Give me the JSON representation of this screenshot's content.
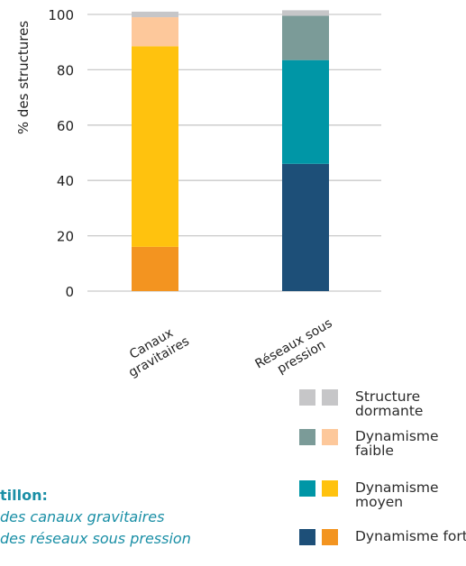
{
  "chart_data": {
    "type": "bar",
    "stacked": true,
    "ylabel": "% des structures",
    "ylim": [
      0,
      100
    ],
    "yticks": [
      0,
      20,
      40,
      60,
      80,
      100
    ],
    "categories": [
      "Canaux gravitaires",
      "Réseaux sous pression"
    ],
    "category_lines": [
      [
        "Canaux",
        "gravitaires"
      ],
      [
        "Réseaux sous",
        "pression"
      ]
    ],
    "grid": true,
    "series": [
      {
        "name": "Dynamisme fort",
        "values": [
          16,
          46
        ],
        "colors": [
          "#f39420",
          "#1d4f78"
        ]
      },
      {
        "name": "Dynamisme moyen",
        "values": [
          72.5,
          37.5
        ],
        "colors": [
          "#ffc20e",
          "#0096a6"
        ]
      },
      {
        "name": "Dynamisme faible",
        "values": [
          10.5,
          16
        ],
        "colors": [
          "#fdc89b",
          "#7b9b98"
        ]
      },
      {
        "name": "Structure dormante",
        "values": [
          2,
          2
        ],
        "colors": [
          "#c6c6c8",
          "#c6c6c8"
        ]
      }
    ]
  },
  "legend": [
    {
      "label": "Structure dormante",
      "colors": [
        "#c6c6c8",
        "#c6c6c8"
      ]
    },
    {
      "label": "Dynamisme faible",
      "colors": [
        "#7b9b98",
        "#fdc89b"
      ]
    },
    {
      "label": "Dynamisme moyen",
      "colors": [
        "#0096a6",
        "#ffc20e"
      ]
    },
    {
      "label": "Dynamisme fort",
      "colors": [
        "#1d4f78",
        "#f39420"
      ]
    }
  ],
  "sample": {
    "heading": "tillon:",
    "line1": "des canaux gravitaires",
    "line2": "des réseaux sous pression"
  }
}
